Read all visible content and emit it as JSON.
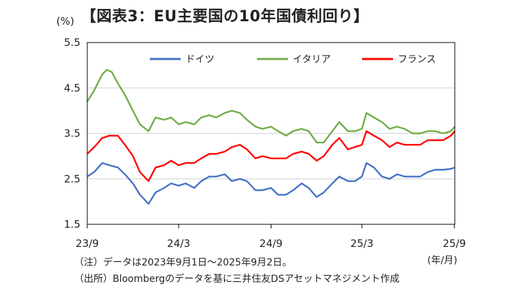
{
  "title": "【図表3：EU主要国の10年国債利回り】",
  "notes": {
    "note1": "（注）データは2023年9月1日～2025年9月2日。",
    "note2": "（出所）Bloombergのデータを基に三井住友DSアセットマネジメント作成"
  },
  "colors": {
    "germany": "#4472C4",
    "italy": "#70AD47",
    "france": "#FF0000",
    "grid": "#D9D9D9",
    "axis": "#000000"
  },
  "chart_data": {
    "type": "line",
    "ylabel": "(%)",
    "xlabel": "(年/月)",
    "ylim": [
      1.5,
      5.5
    ],
    "yticks": [
      "1.5",
      "2.5",
      "3.5",
      "4.5",
      "5.5"
    ],
    "xlim": [
      "2023-09-01",
      "2025-09-02"
    ],
    "xticks": [
      {
        "date": "2023-09-01",
        "label": "23/9"
      },
      {
        "date": "2024-03-01",
        "label": "24/3"
      },
      {
        "date": "2024-09-01",
        "label": "24/9"
      },
      {
        "date": "2025-03-01",
        "label": "25/3"
      },
      {
        "date": "2025-09-01",
        "label": "25/9"
      }
    ],
    "grid": "horizontal",
    "legend_position": "top",
    "series": [
      {
        "name": "ドイツ",
        "color": "#4472C4",
        "points": [
          [
            "2023-09-01",
            2.55
          ],
          [
            "2023-09-15",
            2.65
          ],
          [
            "2023-10-01",
            2.85
          ],
          [
            "2023-10-15",
            2.8
          ],
          [
            "2023-11-01",
            2.75
          ],
          [
            "2023-11-15",
            2.6
          ],
          [
            "2023-12-01",
            2.4
          ],
          [
            "2023-12-15",
            2.15
          ],
          [
            "2024-01-01",
            1.95
          ],
          [
            "2024-01-15",
            2.2
          ],
          [
            "2024-02-01",
            2.3
          ],
          [
            "2024-02-15",
            2.4
          ],
          [
            "2024-03-01",
            2.35
          ],
          [
            "2024-03-15",
            2.4
          ],
          [
            "2024-04-01",
            2.3
          ],
          [
            "2024-04-15",
            2.45
          ],
          [
            "2024-05-01",
            2.55
          ],
          [
            "2024-05-15",
            2.55
          ],
          [
            "2024-06-01",
            2.6
          ],
          [
            "2024-06-15",
            2.45
          ],
          [
            "2024-07-01",
            2.5
          ],
          [
            "2024-07-15",
            2.45
          ],
          [
            "2024-08-01",
            2.25
          ],
          [
            "2024-08-15",
            2.25
          ],
          [
            "2024-09-01",
            2.3
          ],
          [
            "2024-09-15",
            2.15
          ],
          [
            "2024-10-01",
            2.15
          ],
          [
            "2024-10-15",
            2.25
          ],
          [
            "2024-11-01",
            2.4
          ],
          [
            "2024-11-15",
            2.3
          ],
          [
            "2024-12-01",
            2.1
          ],
          [
            "2024-12-15",
            2.2
          ],
          [
            "2025-01-01",
            2.4
          ],
          [
            "2025-01-15",
            2.55
          ],
          [
            "2025-02-01",
            2.45
          ],
          [
            "2025-02-15",
            2.45
          ],
          [
            "2025-03-01",
            2.55
          ],
          [
            "2025-03-10",
            2.85
          ],
          [
            "2025-03-25",
            2.75
          ],
          [
            "2025-04-10",
            2.55
          ],
          [
            "2025-04-25",
            2.5
          ],
          [
            "2025-05-10",
            2.6
          ],
          [
            "2025-05-25",
            2.55
          ],
          [
            "2025-06-10",
            2.55
          ],
          [
            "2025-06-25",
            2.55
          ],
          [
            "2025-07-10",
            2.65
          ],
          [
            "2025-07-25",
            2.7
          ],
          [
            "2025-08-10",
            2.7
          ],
          [
            "2025-08-25",
            2.72
          ],
          [
            "2025-09-02",
            2.75
          ]
        ]
      },
      {
        "name": "イタリア",
        "color": "#70AD47",
        "points": [
          [
            "2023-09-01",
            4.2
          ],
          [
            "2023-09-15",
            4.45
          ],
          [
            "2023-10-01",
            4.8
          ],
          [
            "2023-10-10",
            4.9
          ],
          [
            "2023-10-20",
            4.85
          ],
          [
            "2023-11-01",
            4.6
          ],
          [
            "2023-11-15",
            4.35
          ],
          [
            "2023-12-01",
            4.0
          ],
          [
            "2023-12-15",
            3.7
          ],
          [
            "2024-01-01",
            3.55
          ],
          [
            "2024-01-15",
            3.85
          ],
          [
            "2024-02-01",
            3.8
          ],
          [
            "2024-02-15",
            3.85
          ],
          [
            "2024-03-01",
            3.7
          ],
          [
            "2024-03-15",
            3.75
          ],
          [
            "2024-04-01",
            3.7
          ],
          [
            "2024-04-15",
            3.85
          ],
          [
            "2024-05-01",
            3.9
          ],
          [
            "2024-05-15",
            3.85
          ],
          [
            "2024-06-01",
            3.95
          ],
          [
            "2024-06-15",
            4.0
          ],
          [
            "2024-07-01",
            3.95
          ],
          [
            "2024-07-15",
            3.8
          ],
          [
            "2024-08-01",
            3.65
          ],
          [
            "2024-08-15",
            3.6
          ],
          [
            "2024-09-01",
            3.65
          ],
          [
            "2024-09-15",
            3.55
          ],
          [
            "2024-10-01",
            3.45
          ],
          [
            "2024-10-15",
            3.55
          ],
          [
            "2024-11-01",
            3.6
          ],
          [
            "2024-11-15",
            3.55
          ],
          [
            "2024-12-01",
            3.3
          ],
          [
            "2024-12-15",
            3.3
          ],
          [
            "2025-01-01",
            3.55
          ],
          [
            "2025-01-15",
            3.75
          ],
          [
            "2025-02-01",
            3.55
          ],
          [
            "2025-02-15",
            3.55
          ],
          [
            "2025-03-01",
            3.6
          ],
          [
            "2025-03-10",
            3.95
          ],
          [
            "2025-03-25",
            3.85
          ],
          [
            "2025-04-10",
            3.75
          ],
          [
            "2025-04-25",
            3.6
          ],
          [
            "2025-05-10",
            3.65
          ],
          [
            "2025-05-25",
            3.6
          ],
          [
            "2025-06-10",
            3.5
          ],
          [
            "2025-06-25",
            3.5
          ],
          [
            "2025-07-10",
            3.55
          ],
          [
            "2025-07-25",
            3.55
          ],
          [
            "2025-08-10",
            3.5
          ],
          [
            "2025-08-25",
            3.55
          ],
          [
            "2025-09-02",
            3.65
          ]
        ]
      },
      {
        "name": "フランス",
        "color": "#FF0000",
        "points": [
          [
            "2023-09-01",
            3.05
          ],
          [
            "2023-09-15",
            3.2
          ],
          [
            "2023-10-01",
            3.4
          ],
          [
            "2023-10-15",
            3.45
          ],
          [
            "2023-11-01",
            3.45
          ],
          [
            "2023-11-15",
            3.25
          ],
          [
            "2023-12-01",
            3.0
          ],
          [
            "2023-12-15",
            2.65
          ],
          [
            "2024-01-01",
            2.45
          ],
          [
            "2024-01-15",
            2.75
          ],
          [
            "2024-02-01",
            2.8
          ],
          [
            "2024-02-15",
            2.9
          ],
          [
            "2024-03-01",
            2.8
          ],
          [
            "2024-03-15",
            2.85
          ],
          [
            "2024-04-01",
            2.85
          ],
          [
            "2024-04-15",
            2.95
          ],
          [
            "2024-05-01",
            3.05
          ],
          [
            "2024-05-15",
            3.05
          ],
          [
            "2024-06-01",
            3.1
          ],
          [
            "2024-06-15",
            3.2
          ],
          [
            "2024-07-01",
            3.25
          ],
          [
            "2024-07-15",
            3.15
          ],
          [
            "2024-08-01",
            2.95
          ],
          [
            "2024-08-15",
            3.0
          ],
          [
            "2024-09-01",
            2.95
          ],
          [
            "2024-09-15",
            2.95
          ],
          [
            "2024-10-01",
            2.95
          ],
          [
            "2024-10-15",
            3.05
          ],
          [
            "2024-11-01",
            3.1
          ],
          [
            "2024-11-15",
            3.05
          ],
          [
            "2024-12-01",
            2.9
          ],
          [
            "2024-12-15",
            3.0
          ],
          [
            "2025-01-01",
            3.25
          ],
          [
            "2025-01-15",
            3.4
          ],
          [
            "2025-02-01",
            3.15
          ],
          [
            "2025-02-15",
            3.2
          ],
          [
            "2025-03-01",
            3.25
          ],
          [
            "2025-03-10",
            3.55
          ],
          [
            "2025-03-25",
            3.45
          ],
          [
            "2025-04-10",
            3.35
          ],
          [
            "2025-04-25",
            3.2
          ],
          [
            "2025-05-10",
            3.3
          ],
          [
            "2025-05-25",
            3.25
          ],
          [
            "2025-06-10",
            3.25
          ],
          [
            "2025-06-25",
            3.25
          ],
          [
            "2025-07-10",
            3.35
          ],
          [
            "2025-07-25",
            3.35
          ],
          [
            "2025-08-10",
            3.35
          ],
          [
            "2025-08-25",
            3.45
          ],
          [
            "2025-09-02",
            3.55
          ]
        ]
      }
    ]
  }
}
